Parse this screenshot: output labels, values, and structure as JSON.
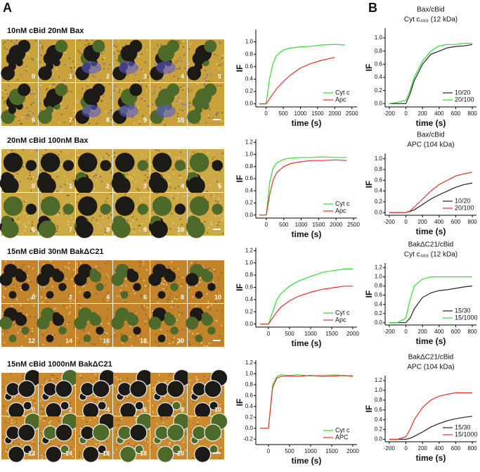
{
  "panel_a": {
    "label": "A",
    "rows": [
      {
        "title": "10nM cBid 20nM Bax",
        "frames": [
          "0",
          "1",
          "2",
          "3",
          "4",
          "5",
          "6",
          "7",
          "8",
          "9",
          "10",
          null
        ],
        "chart": {
          "type": "line",
          "xlabel": "time (s)",
          "ylabel": "IF",
          "x": [
            -200,
            0,
            100,
            200,
            300,
            500,
            700,
            1000,
            1300,
            1600,
            2000,
            2300
          ],
          "xlim": [
            -300,
            2650
          ],
          "xticks": [
            0,
            500,
            1000,
            1500,
            2000,
            2500
          ],
          "ylim": [
            -0.05,
            1.2
          ],
          "yticks": [
            {
              "value": 0,
              "label": "0.0"
            },
            {
              "value": 0.2,
              "label": "0.2"
            },
            {
              "value": 0.4,
              "label": "0.4"
            },
            {
              "value": 0.6,
              "label": "0.6"
            },
            {
              "value": 0.8,
              "label": "0.8"
            },
            {
              "value": 1,
              "label": "1.0"
            }
          ],
          "series": [
            {
              "name": "Cyt c",
              "color": "#33dd33",
              "values": [
                0,
                0,
                0.4,
                0.65,
                0.78,
                0.87,
                0.9,
                0.92,
                0.93,
                0.95,
                0.96,
                0.95
              ]
            },
            {
              "name": "Apc",
              "color": "#e83030",
              "values": [
                0,
                0,
                0.08,
                0.16,
                0.24,
                0.36,
                0.46,
                0.58,
                0.65,
                0.7,
                0.75,
                null
              ]
            }
          ]
        }
      },
      {
        "title": "20nM cBid 100nM Bax",
        "frames": [
          "0",
          "1",
          "2",
          "3",
          "4",
          "5",
          "6",
          "7",
          "8",
          "9",
          "10",
          null
        ],
        "chart": {
          "type": "line",
          "xlabel": "time (s)",
          "ylabel": "IF",
          "x": [
            -200,
            0,
            100,
            200,
            300,
            500,
            700,
            1000,
            1300,
            1600,
            2000,
            2300
          ],
          "xlim": [
            -300,
            2600
          ],
          "xticks": [
            0,
            500,
            1000,
            1500,
            2000,
            2500
          ],
          "ylim": [
            -0.05,
            1.25
          ],
          "yticks": [
            {
              "value": 0,
              "label": "0.0"
            },
            {
              "value": 0.2,
              "label": "0.2"
            },
            {
              "value": 0.4,
              "label": "0.4"
            },
            {
              "value": 0.6,
              "label": "0.6"
            },
            {
              "value": 0.8,
              "label": "0.8"
            },
            {
              "value": 1,
              "label": "1.0"
            },
            {
              "value": 1.2,
              "label": "1.2"
            }
          ],
          "series": [
            {
              "name": "Cyt c",
              "color": "#33dd33",
              "values": [
                0,
                0,
                0.55,
                0.78,
                0.86,
                0.92,
                0.94,
                0.95,
                0.95,
                0.96,
                0.95,
                0.95
              ]
            },
            {
              "name": "Apc",
              "color": "#e83030",
              "values": [
                0,
                0,
                0.35,
                0.58,
                0.7,
                0.8,
                0.85,
                0.88,
                0.9,
                0.9,
                0.91,
                0.9
              ]
            }
          ]
        }
      },
      {
        "title": "15nM cBid 30nM BakΔC21",
        "frames": [
          "0",
          "2",
          "4",
          "6",
          "8",
          "10",
          "12",
          "14",
          "16",
          "18",
          "20",
          null
        ],
        "chart": {
          "type": "line",
          "xlabel": "time (s)",
          "ylabel": "IF",
          "x": [
            -200,
            0,
            100,
            200,
            300,
            500,
            700,
            1000,
            1300,
            1600,
            1800,
            2000
          ],
          "xlim": [
            -300,
            2100
          ],
          "xticks": [
            0,
            500,
            1000,
            1500,
            2000
          ],
          "ylim": [
            -0.05,
            1.25
          ],
          "yticks": [
            {
              "value": 0,
              "label": "0.0"
            },
            {
              "value": 0.2,
              "label": "0.2"
            },
            {
              "value": 0.4,
              "label": "0.4"
            },
            {
              "value": 0.6,
              "label": "0.6"
            },
            {
              "value": 0.8,
              "label": "0.8"
            },
            {
              "value": 1,
              "label": "1.0"
            },
            {
              "value": 1.2,
              "label": "1.2"
            }
          ],
          "series": [
            {
              "name": "Cyt c",
              "color": "#33dd33",
              "values": [
                0,
                0,
                0.2,
                0.4,
                0.5,
                0.62,
                0.7,
                0.78,
                0.85,
                0.88,
                0.9,
                0.9
              ]
            },
            {
              "name": "Apc",
              "color": "#e83030",
              "values": [
                0,
                0,
                0.1,
                0.2,
                0.28,
                0.38,
                0.45,
                0.52,
                0.57,
                0.6,
                0.62,
                0.62
              ]
            }
          ]
        }
      },
      {
        "title": "15nM cBid 1000nM BakΔC21",
        "frames": [
          "0",
          "2",
          "4",
          "6",
          "8",
          "10",
          "12",
          "14",
          "16",
          "18",
          "20",
          null
        ],
        "chart": {
          "type": "line",
          "xlabel": "time (s)",
          "ylabel": "IF",
          "x": [
            -200,
            0,
            100,
            200,
            300,
            500,
            700,
            1000,
            1300,
            1600,
            1800,
            2000
          ],
          "xlim": [
            -300,
            2100
          ],
          "xticks": [
            0,
            500,
            1000,
            1500,
            2000
          ],
          "ylim": [
            -0.3,
            1.25
          ],
          "yticks": [
            {
              "value": -0.2,
              "label": "-0.2"
            },
            {
              "value": 0,
              "label": "0.0"
            },
            {
              "value": 0.2,
              "label": "0.2"
            },
            {
              "value": 0.4,
              "label": "0.4"
            },
            {
              "value": 0.6,
              "label": "0.6"
            },
            {
              "value": 0.8,
              "label": "0.8"
            },
            {
              "value": 1,
              "label": "1.0"
            },
            {
              "value": 1.2,
              "label": "1.2"
            }
          ],
          "series": [
            {
              "name": "Cyt c",
              "color": "#33dd33",
              "values": [
                0,
                0,
                0.8,
                0.95,
                0.98,
                0.97,
                0.98,
                0.96,
                0.97,
                0.98,
                0.96,
                0.97
              ]
            },
            {
              "name": "APC",
              "color": "#e83030",
              "values": [
                0,
                0,
                0.75,
                0.92,
                0.95,
                0.96,
                0.95,
                0.97,
                0.95,
                0.96,
                0.97,
                0.95
              ]
            }
          ]
        }
      }
    ]
  },
  "panel_b": {
    "label": "B",
    "charts": [
      {
        "type": "line",
        "title": [
          "Bax/cBid",
          "Cyt c₄₈₈ (12 kDa)"
        ],
        "xlabel": "time (s)",
        "ylabel": "IF",
        "x": [
          -200,
          -100,
          0,
          50,
          100,
          200,
          300,
          400,
          500,
          600,
          700,
          800
        ],
        "xlim": [
          -250,
          850
        ],
        "xticks": [
          -200,
          0,
          200,
          400,
          600,
          800
        ],
        "ylim": [
          -0.05,
          1.15
        ],
        "yticks": [
          {
            "value": 0,
            "label": "0.0"
          },
          {
            "value": 0.2,
            "label": "0.2"
          },
          {
            "value": 0.4,
            "label": "0.4"
          },
          {
            "value": 0.6,
            "label": "0.6"
          },
          {
            "value": 0.8,
            "label": "0.8"
          },
          {
            "value": 1,
            "label": "1.0"
          }
        ],
        "series": [
          {
            "name": "10/20",
            "color": "#222222",
            "values": [
              0,
              0,
              0,
              0.15,
              0.35,
              0.6,
              0.75,
              0.8,
              0.85,
              0.87,
              0.88,
              0.9
            ]
          },
          {
            "name": "20/100",
            "color": "#33dd33",
            "values": [
              0,
              0.02,
              0.05,
              0.2,
              0.4,
              0.65,
              0.8,
              0.88,
              0.9,
              0.9,
              0.92,
              0.92
            ]
          }
        ]
      },
      {
        "type": "line",
        "title": [
          "Bax/cBid",
          "APC (104 kDa)"
        ],
        "xlabel": "time (s)",
        "ylabel": "IF",
        "x": [
          -200,
          -100,
          0,
          50,
          100,
          200,
          300,
          400,
          500,
          600,
          700,
          800
        ],
        "xlim": [
          -250,
          850
        ],
        "xticks": [
          -200,
          0,
          200,
          400,
          600,
          800
        ],
        "ylim": [
          -0.05,
          1.1
        ],
        "yticks": [
          {
            "value": 0,
            "label": "0.0"
          },
          {
            "value": 0.2,
            "label": "0.2"
          },
          {
            "value": 0.4,
            "label": "0.4"
          },
          {
            "value": 0.6,
            "label": "0.6"
          },
          {
            "value": 0.8,
            "label": "0.8"
          },
          {
            "value": 1,
            "label": "1.0"
          }
        ],
        "series": [
          {
            "name": "10/20",
            "color": "#222222",
            "values": [
              0,
              0,
              0,
              0.02,
              0.05,
              0.15,
              0.25,
              0.33,
              0.4,
              0.47,
              0.52,
              0.55
            ]
          },
          {
            "name": "20/100",
            "color": "#e83030",
            "values": [
              0,
              0,
              0,
              0.03,
              0.1,
              0.25,
              0.4,
              0.52,
              0.6,
              0.68,
              0.72,
              0.75
            ]
          }
        ]
      },
      {
        "type": "line",
        "title": [
          "BakΔC21/cBid",
          "Cyt c₄₈₈ (12 kDa)"
        ],
        "xlabel": "time (s)",
        "ylabel": "IF",
        "x": [
          -200,
          -100,
          0,
          50,
          100,
          200,
          300,
          400,
          500,
          600,
          700,
          800
        ],
        "xlim": [
          -250,
          850
        ],
        "xticks": [
          -200,
          0,
          200,
          400,
          600,
          800
        ],
        "ylim": [
          -0.05,
          1.3
        ],
        "yticks": [
          {
            "value": 0,
            "label": "0.0"
          },
          {
            "value": 0.2,
            "label": "0.2"
          },
          {
            "value": 0.4,
            "label": "0.4"
          },
          {
            "value": 0.6,
            "label": "0.6"
          },
          {
            "value": 0.8,
            "label": "0.8"
          },
          {
            "value": 1,
            "label": "1.0"
          },
          {
            "value": 1.2,
            "label": "1.2"
          }
        ],
        "series": [
          {
            "name": "15/30",
            "color": "#222222",
            "values": [
              0,
              0,
              0,
              0.1,
              0.3,
              0.55,
              0.65,
              0.7,
              0.72,
              0.75,
              0.78,
              0.8
            ]
          },
          {
            "name": "15/1000",
            "color": "#33dd33",
            "values": [
              0,
              0,
              0.1,
              0.5,
              0.8,
              0.95,
              1.0,
              1.0,
              1.0,
              1.0,
              1.0,
              1.0
            ]
          }
        ]
      },
      {
        "type": "line",
        "title": [
          "BakΔC21/cBid",
          "APC (104 kDa)"
        ],
        "xlabel": "time (s)",
        "ylabel": "IF",
        "x": [
          -200,
          -100,
          0,
          50,
          100,
          200,
          300,
          400,
          500,
          600,
          700,
          800
        ],
        "xlim": [
          -250,
          850
        ],
        "xticks": [
          -200,
          0,
          200,
          400,
          600,
          800
        ],
        "ylim": [
          -0.05,
          1.3
        ],
        "yticks": [
          {
            "value": 0,
            "label": "0.0"
          },
          {
            "value": 0.2,
            "label": "0.2"
          },
          {
            "value": 0.4,
            "label": "0.4"
          },
          {
            "value": 0.6,
            "label": "0.6"
          },
          {
            "value": 0.8,
            "label": "0.8"
          },
          {
            "value": 1,
            "label": "1.0"
          },
          {
            "value": 1.2,
            "label": "1.2"
          }
        ],
        "series": [
          {
            "name": "15/30",
            "color": "#222222",
            "values": [
              0,
              0,
              0,
              0.02,
              0.06,
              0.15,
              0.25,
              0.32,
              0.38,
              0.42,
              0.45,
              0.47
            ]
          },
          {
            "name": "15/1000",
            "color": "#e83030",
            "values": [
              0,
              0,
              0.05,
              0.2,
              0.4,
              0.65,
              0.8,
              0.88,
              0.92,
              0.95,
              0.95,
              0.95
            ]
          }
        ]
      }
    ]
  }
}
